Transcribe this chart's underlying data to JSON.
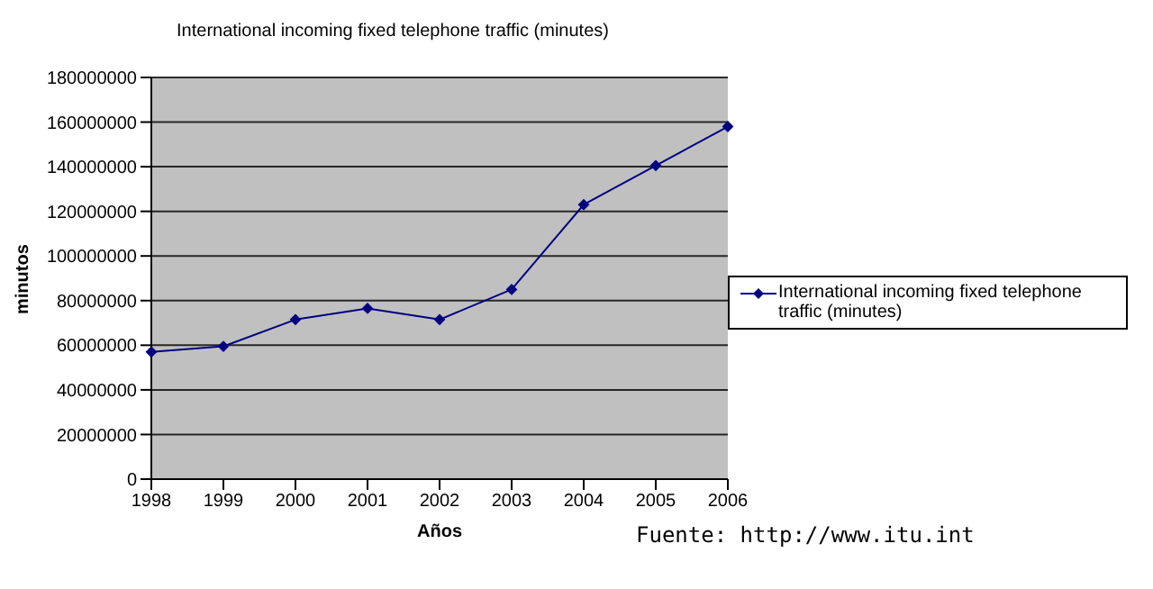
{
  "chart_data": {
    "type": "line",
    "title": "International incoming fixed telephone traffic (minutes)",
    "xlabel": "Años",
    "ylabel": "minutos",
    "categories": [
      "1998",
      "1999",
      "2000",
      "2001",
      "2002",
      "2003",
      "2004",
      "2005",
      "2006"
    ],
    "series": [
      {
        "name": "International incoming fixed telephone traffic (minutes)",
        "color": "#000080",
        "values": [
          57000000,
          59500000,
          71500000,
          76500000,
          71500000,
          85000000,
          123000000,
          140500000,
          158000000
        ]
      }
    ],
    "ylim": [
      0,
      180000000
    ],
    "yticks": [
      0,
      20000000,
      40000000,
      60000000,
      80000000,
      100000000,
      120000000,
      140000000,
      160000000,
      180000000
    ],
    "grid": "y",
    "legend": "right",
    "marker": "diamond",
    "line_style": "solid",
    "annotations": [
      "Fuente: http://www.itu.int"
    ]
  }
}
